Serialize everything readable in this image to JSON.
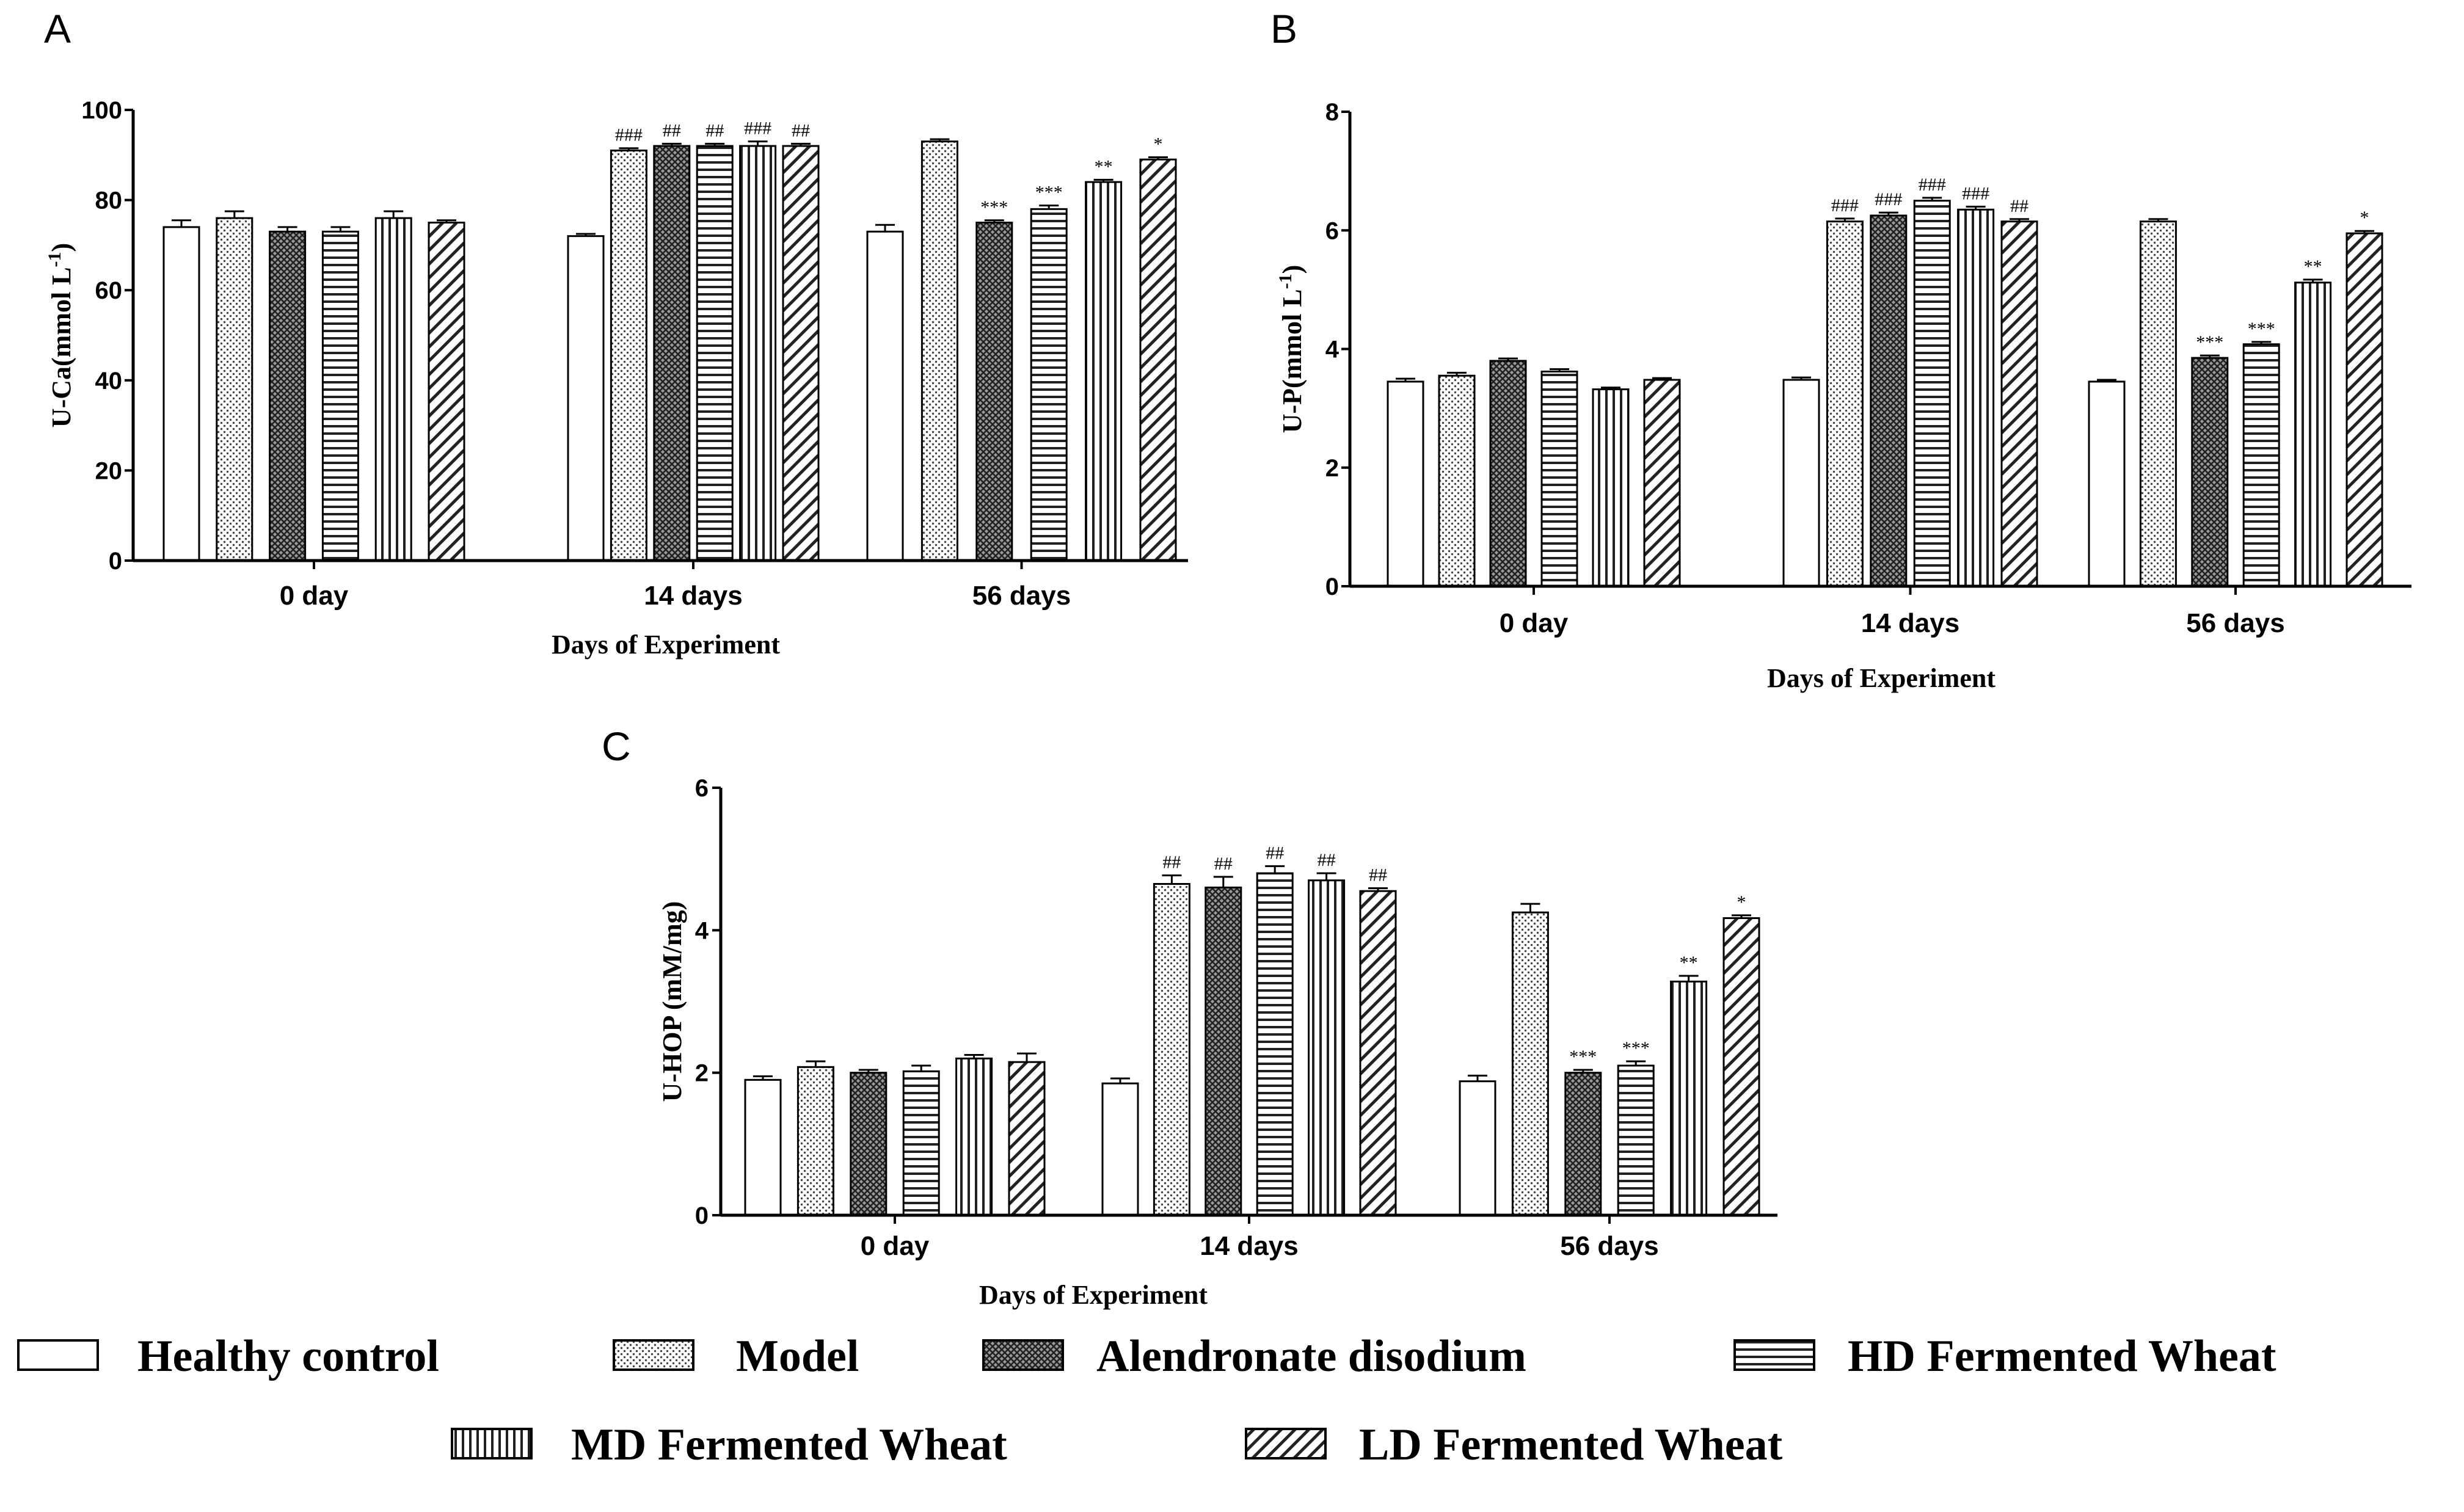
{
  "legend": [
    {
      "name": "Healthy control",
      "pattern": "none"
    },
    {
      "name": "Model",
      "pattern": "dots"
    },
    {
      "name": "Alendronate disodium",
      "pattern": "cross"
    },
    {
      "name": "HD Fermented Wheat",
      "pattern": "hlines"
    },
    {
      "name": "MD Fermented Wheat",
      "pattern": "vlines"
    },
    {
      "name": "LD Fermented Wheat",
      "pattern": "diag"
    }
  ],
  "chart_data": [
    {
      "panel": "A",
      "type": "bar",
      "ylabel_main": "U-Ca(mmol L",
      "ylabel_sup": "-1",
      "ylabel_end": ")",
      "xlabel": "Days of Experiment",
      "categories": [
        "0 day",
        "14 days",
        "56 days"
      ],
      "ylim": [
        0,
        100
      ],
      "yticks": [
        0,
        20,
        40,
        60,
        80,
        100
      ],
      "series": [
        {
          "name": "Healthy control",
          "values": [
            74,
            72,
            73
          ],
          "errors": [
            1.5,
            0.5,
            1.5
          ],
          "labels": [
            "",
            "",
            ""
          ]
        },
        {
          "name": "Model",
          "values": [
            76,
            91,
            93
          ],
          "errors": [
            1.5,
            0.5,
            0.5
          ],
          "labels": [
            "",
            "###",
            ""
          ]
        },
        {
          "name": "Alendronate disodium",
          "values": [
            73,
            92,
            75
          ],
          "errors": [
            1,
            0.5,
            0.5
          ],
          "labels": [
            "",
            "##",
            "***"
          ]
        },
        {
          "name": "HD Fermented Wheat",
          "values": [
            73,
            92,
            78
          ],
          "errors": [
            1,
            0.5,
            0.8
          ],
          "labels": [
            "",
            "##",
            "***"
          ]
        },
        {
          "name": "MD Fermented Wheat",
          "values": [
            76,
            92,
            84
          ],
          "errors": [
            1.5,
            1,
            0.5
          ],
          "labels": [
            "",
            "###",
            "**"
          ]
        },
        {
          "name": "LD Fermented Wheat",
          "values": [
            75,
            92,
            89
          ],
          "errors": [
            0.5,
            0.5,
            0.5
          ],
          "labels": [
            "",
            "##",
            "*"
          ]
        }
      ]
    },
    {
      "panel": "B",
      "type": "bar",
      "ylabel_main": "U-P(mmol L",
      "ylabel_sup": "-1",
      "ylabel_end": ")",
      "xlabel": "Days of Experiment",
      "categories": [
        "0 day",
        "14 days",
        "56 days"
      ],
      "ylim": [
        0,
        8
      ],
      "yticks": [
        0,
        2,
        4,
        6,
        8
      ],
      "series": [
        {
          "name": "Healthy control",
          "values": [
            3.45,
            3.48,
            3.45
          ],
          "errors": [
            0.05,
            0.04,
            0.03
          ],
          "labels": [
            "",
            "",
            ""
          ]
        },
        {
          "name": "Model",
          "values": [
            3.55,
            6.15,
            6.15
          ],
          "errors": [
            0.05,
            0.05,
            0.04
          ],
          "labels": [
            "",
            "###",
            ""
          ]
        },
        {
          "name": "Alendronate disodium",
          "values": [
            3.8,
            6.25,
            3.85
          ],
          "errors": [
            0.04,
            0.05,
            0.04
          ],
          "labels": [
            "",
            "###",
            "***"
          ]
        },
        {
          "name": "HD Fermented Wheat",
          "values": [
            3.62,
            6.5,
            4.08
          ],
          "errors": [
            0.04,
            0.05,
            0.04
          ],
          "labels": [
            "",
            "###",
            "***"
          ]
        },
        {
          "name": "MD Fermented Wheat",
          "values": [
            3.32,
            6.35,
            5.12
          ],
          "errors": [
            0.03,
            0.05,
            0.05
          ],
          "labels": [
            "",
            "###",
            "**"
          ]
        },
        {
          "name": "LD Fermented Wheat",
          "values": [
            3.48,
            6.15,
            5.95
          ],
          "errors": [
            0.03,
            0.04,
            0.04
          ],
          "labels": [
            "",
            "##",
            "*"
          ]
        }
      ]
    },
    {
      "panel": "C",
      "type": "bar",
      "ylabel_main": "U-HOP (mM/mg)",
      "ylabel_sup": "",
      "ylabel_end": "",
      "xlabel": "Days of Experiment",
      "categories": [
        "0 day",
        "14 days",
        "56 days"
      ],
      "ylim": [
        0,
        6
      ],
      "yticks": [
        0,
        2,
        4,
        6
      ],
      "series": [
        {
          "name": "Healthy control",
          "values": [
            1.9,
            1.85,
            1.88
          ],
          "errors": [
            0.05,
            0.07,
            0.08
          ],
          "labels": [
            "",
            "",
            ""
          ]
        },
        {
          "name": "Model",
          "values": [
            2.08,
            4.65,
            4.25
          ],
          "errors": [
            0.08,
            0.12,
            0.12
          ],
          "labels": [
            "",
            "##",
            ""
          ]
        },
        {
          "name": "Alendronate disodium",
          "values": [
            2.0,
            4.6,
            2.0
          ],
          "errors": [
            0.04,
            0.15,
            0.04
          ],
          "labels": [
            "",
            "##",
            "***"
          ]
        },
        {
          "name": "HD Fermented Wheat",
          "values": [
            2.02,
            4.8,
            2.1
          ],
          "errors": [
            0.08,
            0.1,
            0.06
          ],
          "labels": [
            "",
            "##",
            "***"
          ]
        },
        {
          "name": "MD Fermented Wheat",
          "values": [
            2.2,
            4.7,
            3.28
          ],
          "errors": [
            0.05,
            0.1,
            0.08
          ],
          "labels": [
            "",
            "##",
            "**"
          ]
        },
        {
          "name": "LD Fermented Wheat",
          "values": [
            2.15,
            4.55,
            4.17
          ],
          "errors": [
            0.12,
            0.04,
            0.04
          ],
          "labels": [
            "",
            "##",
            "*"
          ]
        }
      ]
    }
  ]
}
